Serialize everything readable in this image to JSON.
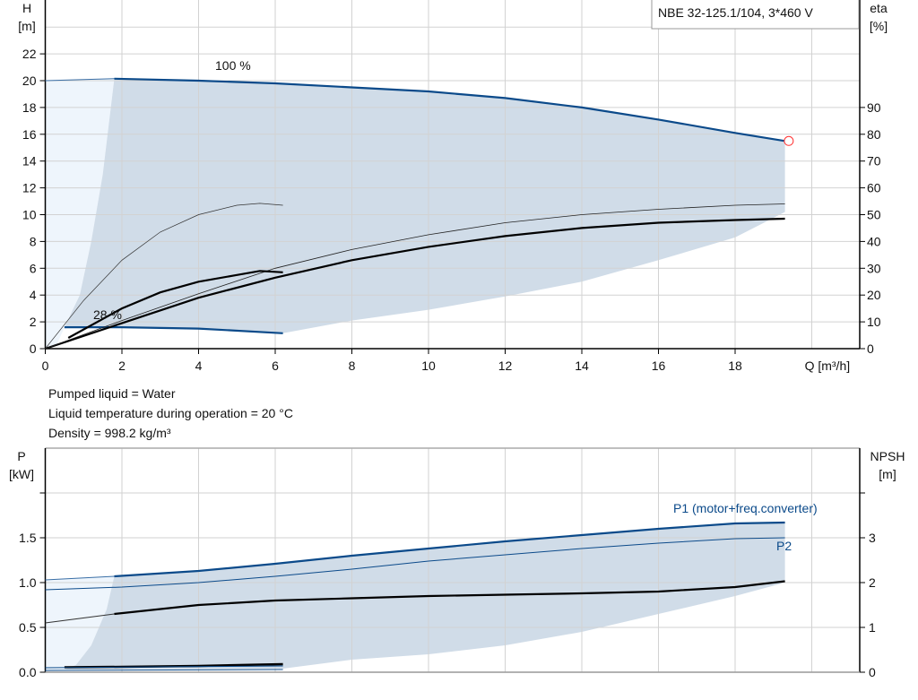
{
  "chart_data": [
    {
      "type": "line",
      "title": "NBE 32-125.1/104, 3*460 V",
      "xlabel": "Q [m³/h]",
      "ylabel_left": [
        "H",
        "[m]"
      ],
      "ylabel_right": [
        "eta",
        "[%]"
      ],
      "xlim": [
        0,
        21.25
      ],
      "ylim_left": [
        0,
        26
      ],
      "ylim_right": [
        0,
        130
      ],
      "x_ticks": [
        "0",
        "2",
        "4",
        "6",
        "8",
        "10",
        "12",
        "14",
        "16",
        "18"
      ],
      "y_ticks_left": [
        "0",
        "2",
        "4",
        "6",
        "8",
        "10",
        "12",
        "14",
        "16",
        "18",
        "20",
        "22"
      ],
      "y_ticks_right": [
        "0",
        "10",
        "20",
        "30",
        "40",
        "50",
        "60",
        "70",
        "80",
        "90"
      ],
      "grid": true,
      "annotations": [
        "100 %",
        "28 %"
      ],
      "colors": {
        "head": "#0b4a8a",
        "eta": "#000000",
        "region": "#d0dce8",
        "region_light": "#eef5fc",
        "duty_point": "#ff3333"
      },
      "series": [
        {
          "name": "100 %",
          "axis": "H",
          "x": [
            0,
            1.8,
            4,
            6,
            8,
            10,
            12,
            14,
            16,
            18,
            19.3
          ],
          "y": [
            20.0,
            20.15,
            20.0,
            19.8,
            19.5,
            19.2,
            18.7,
            18.0,
            17.1,
            16.1,
            15.5
          ]
        },
        {
          "name": "28 %",
          "axis": "H",
          "x": [
            0.5,
            2,
            4,
            6.2
          ],
          "y": [
            1.6,
            1.6,
            1.5,
            1.15
          ]
        },
        {
          "axis": "eta",
          "x": [
            0,
            2,
            4,
            6,
            8,
            10,
            12,
            14,
            16,
            18,
            19.3
          ],
          "y": [
            0,
            9.5,
            19,
            26.5,
            33,
            38,
            42,
            45,
            47,
            48,
            48.5
          ]
        },
        {
          "axis": "eta",
          "x": [
            0,
            2,
            4,
            6,
            8,
            10,
            12,
            14,
            16,
            18,
            19.3
          ],
          "y": [
            0,
            10.5,
            20.5,
            30,
            37,
            42.5,
            47,
            50,
            52,
            53.5,
            54
          ]
        },
        {
          "axis": "eta",
          "x": [
            0.6,
            2,
            3,
            4,
            5,
            5.6,
            6.2
          ],
          "y": [
            4,
            15,
            21,
            25,
            27.5,
            29,
            28.5
          ]
        },
        {
          "axis": "eta",
          "x": [
            0,
            1,
            2,
            3,
            4,
            5,
            5.6,
            6.2
          ],
          "y": [
            0,
            18,
            33,
            43.5,
            50,
            53.5,
            54.2,
            53.5
          ]
        }
      ],
      "duty_point": {
        "x": 19.4,
        "y": 15.5
      }
    },
    {
      "type": "line",
      "xlim": [
        0,
        21.25
      ],
      "ylabel_left": [
        "P",
        "[kW]"
      ],
      "ylabel_right": [
        "NPSH",
        "[m]"
      ],
      "ylim_left": [
        0,
        2.5
      ],
      "ylim_right": [
        0,
        5
      ],
      "y_ticks_left": [
        "0.0",
        "0.5",
        "1.0",
        "1.5"
      ],
      "y_ticks_right": [
        "0",
        "1",
        "2",
        "3"
      ],
      "grid": true,
      "series": [
        {
          "name": "P1 (motor+freq.converter)",
          "axis": "P",
          "x": [
            0,
            1.8,
            4,
            6,
            8,
            10,
            12,
            14,
            16,
            18,
            19.3
          ],
          "y": [
            1.03,
            1.07,
            1.13,
            1.21,
            1.3,
            1.38,
            1.46,
            1.53,
            1.6,
            1.66,
            1.67
          ]
        },
        {
          "name": "P2",
          "axis": "P",
          "x": [
            0,
            2,
            4,
            6,
            8,
            10,
            12,
            14,
            16,
            18,
            19.3
          ],
          "y": [
            0.92,
            0.95,
            1.0,
            1.07,
            1.15,
            1.24,
            1.31,
            1.38,
            1.44,
            1.49,
            1.5
          ]
        },
        {
          "axis": "NPSH",
          "x": [
            0,
            1.8,
            4,
            6,
            8,
            10,
            12,
            14,
            16,
            18,
            19.3
          ],
          "y": [
            1.1,
            1.3,
            1.5,
            1.6,
            1.65,
            1.7,
            1.73,
            1.76,
            1.8,
            1.9,
            2.03
          ]
        },
        {
          "axis": "P",
          "x": [
            0.5,
            2,
            4,
            6.2
          ],
          "y": [
            0.055,
            0.06,
            0.07,
            0.09
          ]
        }
      ]
    }
  ],
  "info": {
    "line1": "Pumped liquid = Water",
    "line2": "Liquid temperature during operation = 20 °C",
    "line3": "Density = 998.2 kg/m³"
  }
}
